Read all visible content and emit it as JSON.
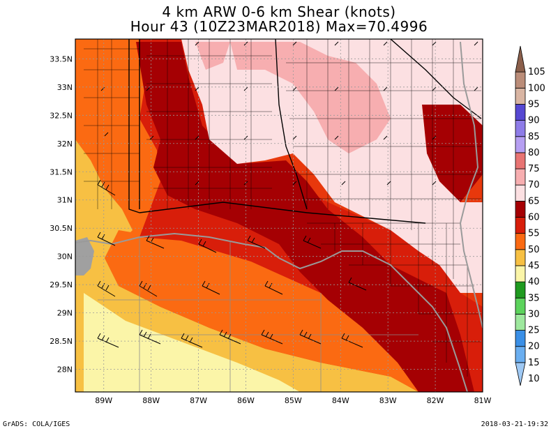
{
  "title": {
    "line1": "4 km ARW 0-6 km Shear (knots)",
    "line2": "Hour 43 (10Z23MAR2018) Max=70.4996"
  },
  "axes": {
    "lat_labels": [
      "33.5N",
      "33N",
      "32.5N",
      "32N",
      "31.5N",
      "31N",
      "30.5N",
      "30N",
      "29.5N",
      "29N",
      "28.5N",
      "28N"
    ],
    "lat_values": [
      33.5,
      33,
      32.5,
      32,
      31.5,
      31,
      30.5,
      30,
      29.5,
      29,
      28.5,
      28
    ],
    "lon_labels": [
      "89W",
      "88W",
      "87W",
      "86W",
      "85W",
      "84W",
      "83W",
      "82W",
      "81W"
    ],
    "lon_values": [
      -89,
      -88,
      -87,
      -86,
      -85,
      -84,
      -83,
      -82,
      -81
    ],
    "lat_range": [
      27.6,
      33.85
    ],
    "lon_range": [
      -89.6,
      -81.0
    ]
  },
  "colorbar": {
    "levels": [
      "10",
      "15",
      "20",
      "25",
      "30",
      "35",
      "40",
      "45",
      "50",
      "55",
      "60",
      "65",
      "70",
      "75",
      "80",
      "85",
      "90",
      "95",
      "100",
      "105"
    ],
    "colors": [
      "#9fc9f4",
      "#6aaef0",
      "#3a8fe6",
      "#9ee89e",
      "#5cd35c",
      "#1f9a1f",
      "#fbf5a8",
      "#f7c043",
      "#fb6a12",
      "#d81e0a",
      "#a50003",
      "#fce0e2",
      "#f7aeb0",
      "#e87473",
      "#b69ff2",
      "#8e7ce8",
      "#5648d2",
      "#d9b5a3",
      "#bb8d79",
      "#8b5f4b"
    ]
  },
  "footer": {
    "left": "GrADS: COLA/IGES",
    "right": "2018-03-21-19:32"
  }
}
